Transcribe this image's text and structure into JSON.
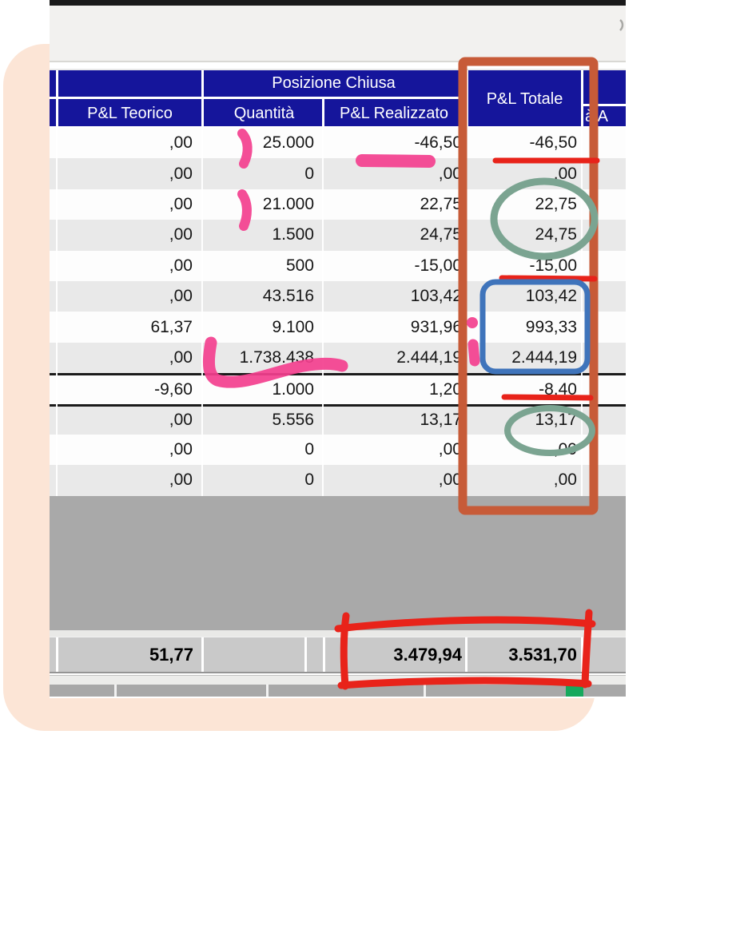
{
  "page": {
    "backdrop_color": "#fce5d6"
  },
  "table": {
    "header": {
      "bg_color": "#15159b",
      "group_label": "Posizione Chiusa",
      "columns": {
        "teorico": "P&L Teorico",
        "quantita": "Quantità",
        "realizzato": "P&L Realizzato",
        "totale": "P&L Totale",
        "partial": "à A"
      }
    },
    "rows": [
      {
        "teorico": ",00",
        "quantita": "25.000",
        "realizzato": "-46,50",
        "totale": "-46,50"
      },
      {
        "teorico": ",00",
        "quantita": "0",
        "realizzato": ",00",
        "totale": ",00"
      },
      {
        "teorico": ",00",
        "quantita": "21.000",
        "realizzato": "22,75",
        "totale": "22,75"
      },
      {
        "teorico": ",00",
        "quantita": "1.500",
        "realizzato": "24,75",
        "totale": "24,75"
      },
      {
        "teorico": ",00",
        "quantita": "500",
        "realizzato": "-15,00",
        "totale": "-15,00"
      },
      {
        "teorico": ",00",
        "quantita": "43.516",
        "realizzato": "103,42",
        "totale": "103,42"
      },
      {
        "teorico": "61,37",
        "quantita": "9.100",
        "realizzato": "931,96",
        "totale": "993,33"
      },
      {
        "teorico": ",00",
        "quantita": "1.738.438",
        "realizzato": "2.444,19",
        "totale": "2.444,19"
      },
      {
        "teorico": "-9,60",
        "quantita": "1.000",
        "realizzato": "1,20",
        "totale": "-8,40"
      },
      {
        "teorico": ",00",
        "quantita": "5.556",
        "realizzato": "13,17",
        "totale": "13,17"
      },
      {
        "teorico": ",00",
        "quantita": "0",
        "realizzato": ",00",
        "totale": ",00"
      },
      {
        "teorico": ",00",
        "quantita": "0",
        "realizzato": ",00",
        "totale": ",00"
      }
    ],
    "totals": {
      "teorico": "51,77",
      "quantita": "",
      "realizzato": "3.479,94",
      "totale": "3.531,70"
    }
  },
  "annotations": {
    "column_box_color": "#c75b38",
    "red_color": "#e8231a",
    "green_circle_color": "#7ba491",
    "blue_box_color": "#3f74bb",
    "pink_marker_color": "#f33f8e",
    "green_square_color": "#17a95d"
  }
}
